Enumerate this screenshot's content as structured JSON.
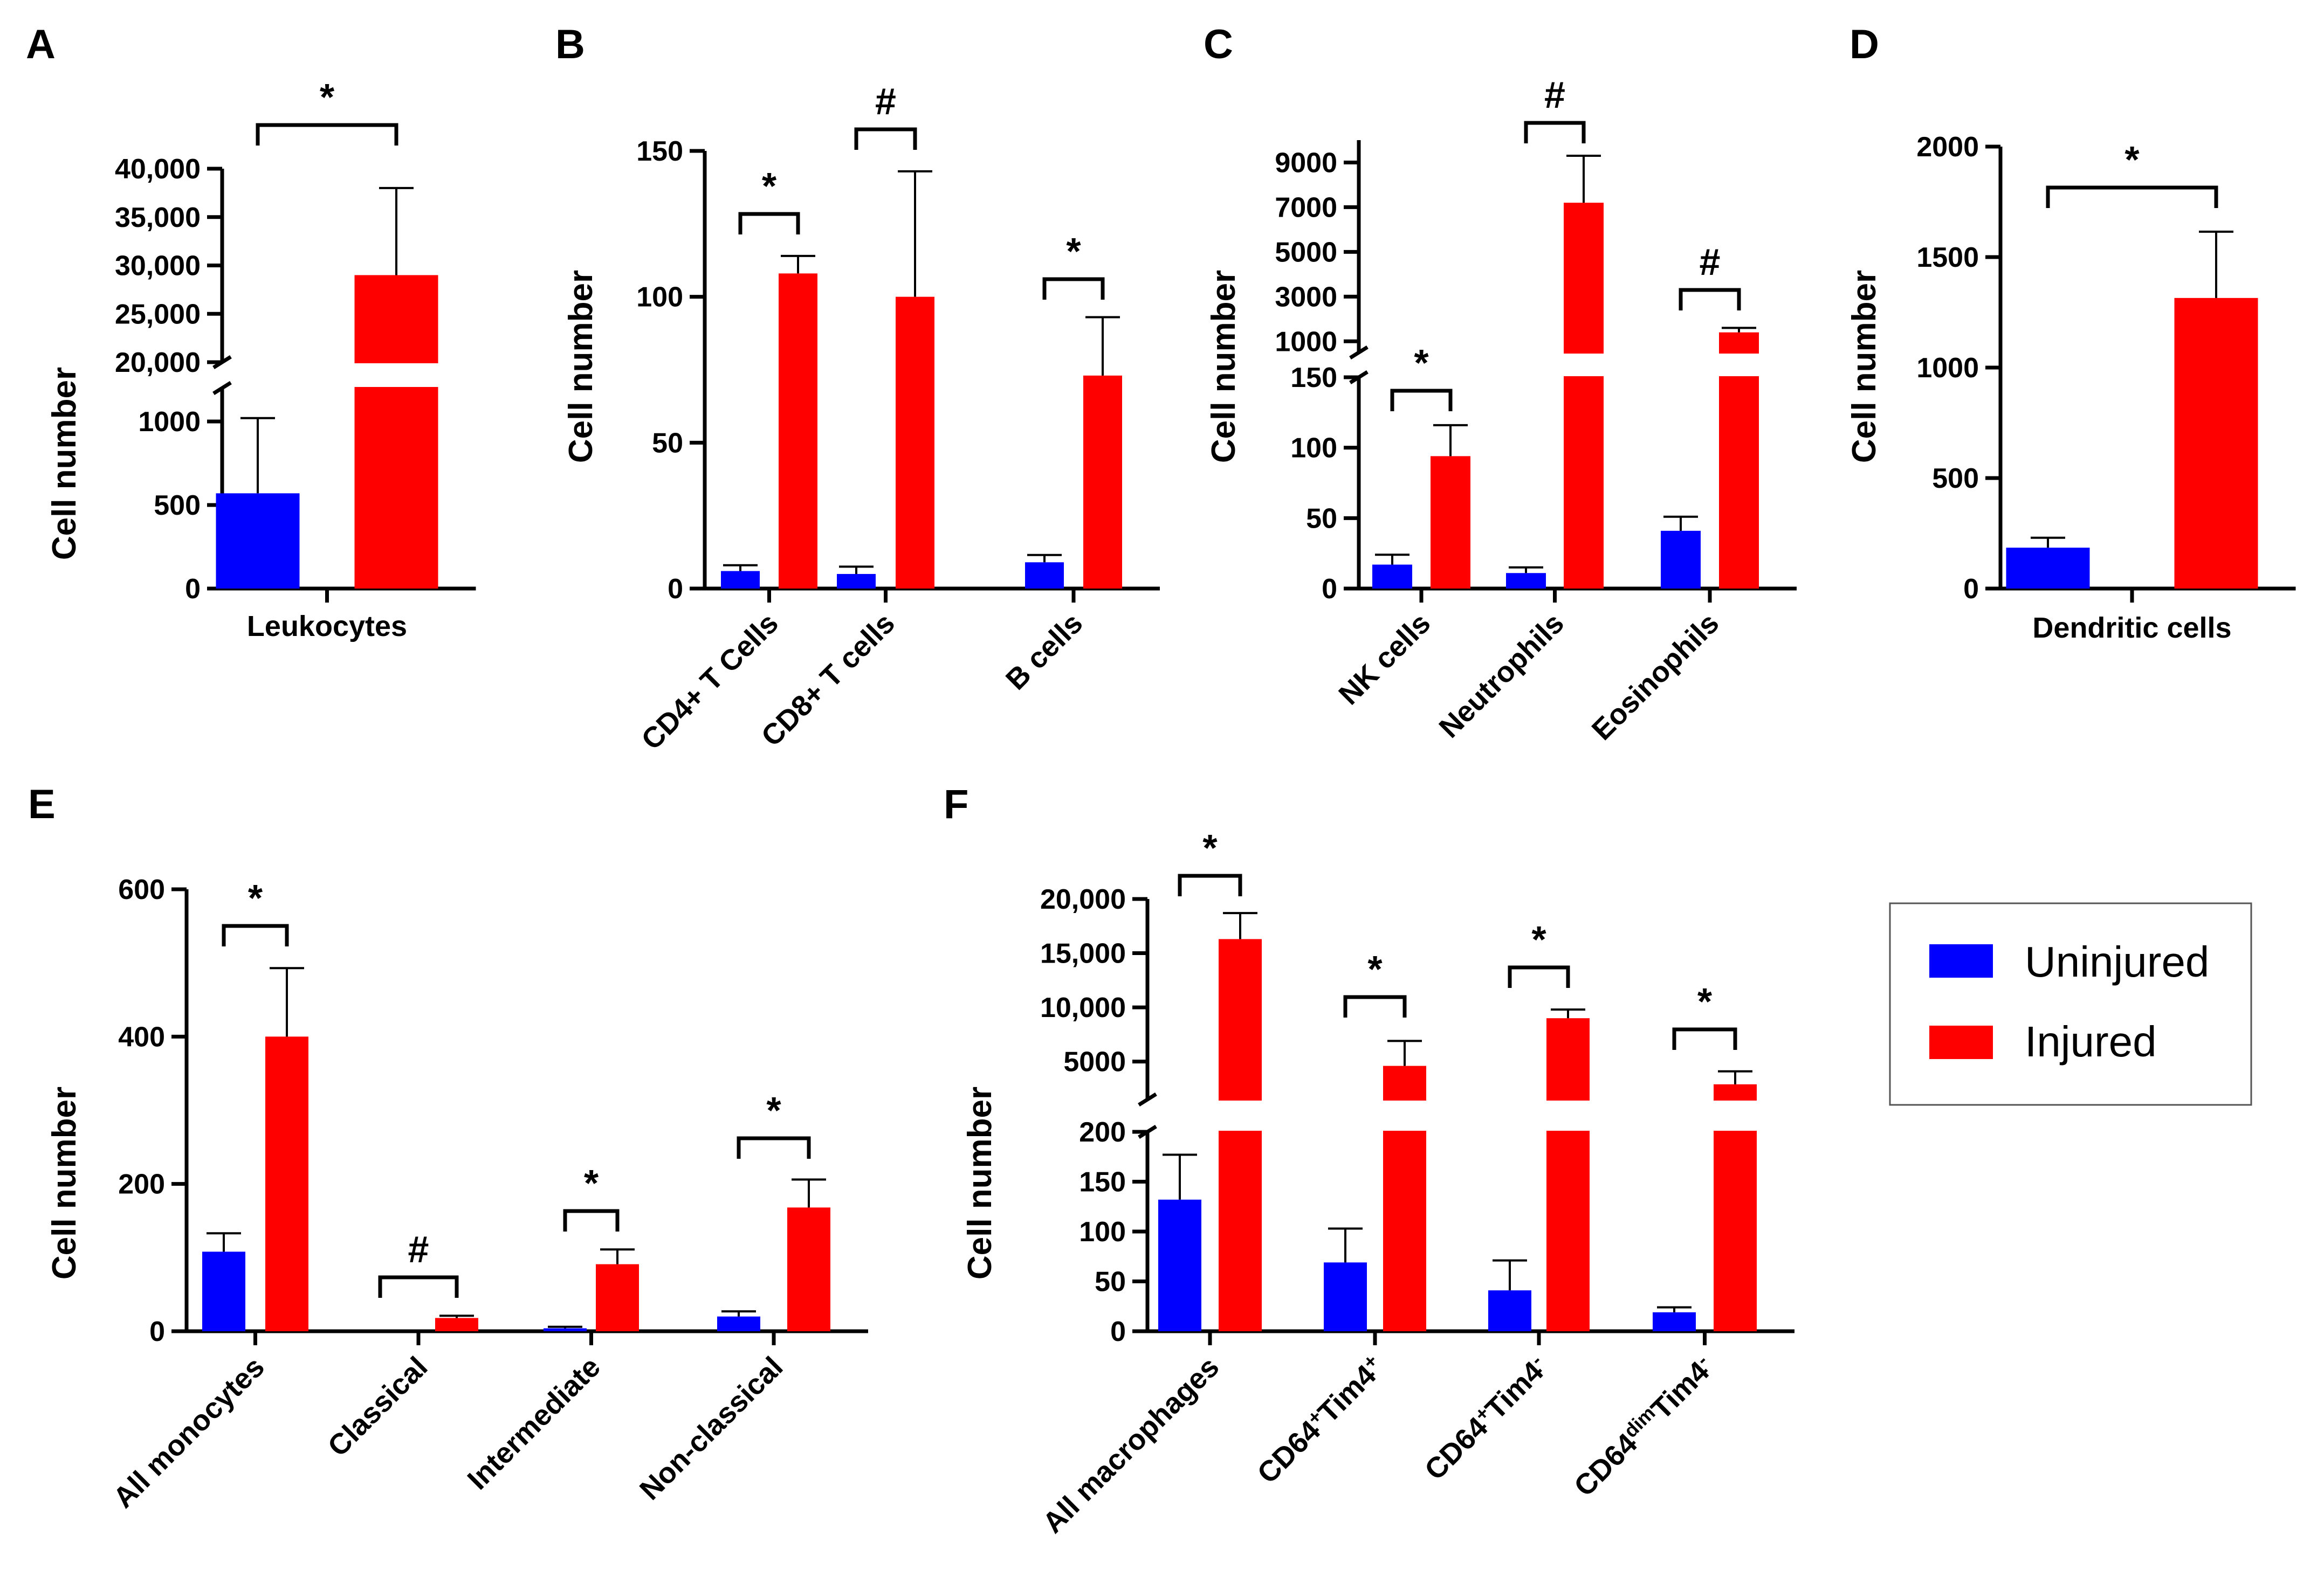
{
  "colors": {
    "uninjured": "#0000FF",
    "injured": "#FF0000",
    "star": "#000000"
  },
  "legend": {
    "entries": [
      {
        "name": "Uninjured",
        "color": "#0000FF"
      },
      {
        "name": "Injured",
        "color": "#FF0000"
      }
    ]
  },
  "chart_data": [
    {
      "panel": "A",
      "type": "bar",
      "ylabel": "Cell number",
      "x_label_style": "horizontal",
      "categories": [
        "Leukocytes"
      ],
      "series": [
        {
          "name": "Uninjured",
          "values": [
            570
          ],
          "errors": [
            450
          ]
        },
        {
          "name": "Injured",
          "values": [
            29000
          ],
          "errors": [
            9000
          ]
        }
      ],
      "y_axis": {
        "broken": true,
        "segments": [
          {
            "range": [
              0,
              1200
            ],
            "ticks": [
              0,
              500,
              1000
            ],
            "tick_labels": [
              "0",
              "500",
              "1000"
            ]
          },
          {
            "range": [
              20000,
              40000
            ],
            "ticks": [
              20000,
              25000,
              30000,
              35000,
              40000
            ],
            "tick_labels": [
              "20,000",
              "25,000",
              "30,000",
              "35,000",
              "40,000"
            ]
          }
        ]
      },
      "significance": [
        {
          "category": 0,
          "symbol": "*"
        }
      ]
    },
    {
      "panel": "B",
      "type": "bar",
      "ylabel": "Cell number",
      "x_label_style": "rotated",
      "categories": [
        "CD4+ T Cells",
        "CD8+ T cells",
        "B cells"
      ],
      "series": [
        {
          "name": "Uninjured",
          "values": [
            6,
            5,
            9
          ],
          "errors": [
            2,
            2.5,
            2.5
          ]
        },
        {
          "name": "Injured",
          "values": [
            108,
            100,
            73
          ],
          "errors": [
            6,
            43,
            20
          ]
        }
      ],
      "y_axis": {
        "broken": false,
        "segments": [
          {
            "range": [
              0,
              150
            ],
            "ticks": [
              0,
              50,
              100,
              150
            ],
            "tick_labels": [
              "0",
              "50",
              "100",
              "150"
            ]
          }
        ]
      },
      "significance": [
        {
          "category": 0,
          "symbol": "*"
        },
        {
          "category": 1,
          "symbol": "#"
        },
        {
          "category": 2,
          "symbol": "*"
        }
      ]
    },
    {
      "panel": "C",
      "type": "bar",
      "ylabel": "Cell number",
      "x_label_style": "rotated",
      "categories": [
        "NK cells",
        "Neutrophils",
        "Eosinophils"
      ],
      "series": [
        {
          "name": "Uninjured",
          "values": [
            17,
            11,
            41
          ],
          "errors": [
            7,
            4,
            10
          ]
        },
        {
          "name": "Injured",
          "values": [
            94,
            7200,
            1400
          ],
          "errors": [
            22,
            2100,
            200
          ]
        }
      ],
      "y_axis": {
        "broken": true,
        "segments": [
          {
            "range": [
              0,
              150
            ],
            "ticks": [
              0,
              50,
              100,
              150
            ],
            "tick_labels": [
              "0",
              "50",
              "100",
              "150"
            ]
          },
          {
            "range": [
              500,
              10000
            ],
            "ticks": [
              1000,
              3000,
              5000,
              7000,
              9000
            ],
            "tick_labels": [
              "1000",
              "3000",
              "5000",
              "7000",
              "9000"
            ]
          }
        ]
      },
      "significance": [
        {
          "category": 0,
          "symbol": "*"
        },
        {
          "category": 1,
          "symbol": "#"
        },
        {
          "category": 2,
          "symbol": "#"
        }
      ]
    },
    {
      "panel": "D",
      "type": "bar",
      "ylabel": "Cell number",
      "x_label_style": "horizontal",
      "categories": [
        "Dendritic cells"
      ],
      "series": [
        {
          "name": "Uninjured",
          "values": [
            185
          ],
          "errors": [
            45
          ]
        },
        {
          "name": "Injured",
          "values": [
            1315
          ],
          "errors": [
            300
          ]
        }
      ],
      "y_axis": {
        "broken": false,
        "segments": [
          {
            "range": [
              0,
              2000
            ],
            "ticks": [
              0,
              500,
              1000,
              1500,
              2000
            ],
            "tick_labels": [
              "0",
              "500",
              "1000",
              "1500",
              "2000"
            ]
          }
        ]
      },
      "significance": [
        {
          "category": 0,
          "symbol": "*"
        }
      ]
    },
    {
      "panel": "E",
      "type": "bar",
      "ylabel": "Cell number",
      "x_label_style": "rotated",
      "categories": [
        "All monocytes",
        "Classical",
        "Intermediate",
        "Non-classical"
      ],
      "series": [
        {
          "name": "Uninjured",
          "values": [
            108,
            0,
            4,
            20
          ],
          "errors": [
            25,
            0,
            2,
            7
          ]
        },
        {
          "name": "Injured",
          "values": [
            400,
            18,
            91,
            168
          ],
          "errors": [
            93,
            3,
            20,
            38
          ]
        }
      ],
      "y_axis": {
        "broken": false,
        "segments": [
          {
            "range": [
              0,
              600
            ],
            "ticks": [
              0,
              200,
              400,
              600
            ],
            "tick_labels": [
              "0",
              "200",
              "400",
              "600"
            ]
          }
        ]
      },
      "significance": [
        {
          "category": 0,
          "symbol": "*"
        },
        {
          "category": 1,
          "symbol": "#"
        },
        {
          "category": 2,
          "symbol": "*"
        },
        {
          "category": 3,
          "symbol": "*"
        }
      ]
    },
    {
      "panel": "F",
      "type": "bar",
      "ylabel": "Cell number",
      "x_label_style": "rotated",
      "categories": [
        "All macrophages",
        "CD64+Tim4+",
        "CD64+Tim4-",
        "CD64dimTim4-"
      ],
      "category_parts": [
        [
          {
            "t": "All macrophages",
            "s": "n"
          }
        ],
        [
          {
            "t": "CD64",
            "s": "n"
          },
          {
            "t": "+",
            "s": "sup"
          },
          {
            "t": "Tim4",
            "s": "n"
          },
          {
            "t": "+",
            "s": "sup"
          }
        ],
        [
          {
            "t": "CD64",
            "s": "n"
          },
          {
            "t": "+",
            "s": "sup"
          },
          {
            "t": "Tim4",
            "s": "n"
          },
          {
            "t": "-",
            "s": "sup"
          }
        ],
        [
          {
            "t": "CD64",
            "s": "n"
          },
          {
            "t": "dim",
            "s": "sup"
          },
          {
            "t": "Tim4",
            "s": "n"
          },
          {
            "t": "-",
            "s": "sup"
          }
        ]
      ],
      "series": [
        {
          "name": "Uninjured",
          "values": [
            132,
            69,
            41,
            19
          ],
          "errors": [
            45,
            34,
            30,
            5
          ]
        },
        {
          "name": "Injured",
          "values": [
            16300,
            4600,
            9000,
            2900
          ],
          "errors": [
            2400,
            2300,
            800,
            1200
          ]
        }
      ],
      "y_axis": {
        "broken": true,
        "segments": [
          {
            "range": [
              0,
              200
            ],
            "ticks": [
              0,
              50,
              100,
              150,
              200
            ],
            "tick_labels": [
              "0",
              "50",
              "100",
              "150",
              "200"
            ]
          },
          {
            "range": [
              1500,
              20000
            ],
            "ticks": [
              5000,
              10000,
              15000,
              20000
            ],
            "tick_labels": [
              "5000",
              "10,000",
              "15,000",
              "20,000"
            ]
          }
        ]
      },
      "significance": [
        {
          "category": 0,
          "symbol": "*"
        },
        {
          "category": 1,
          "symbol": "*"
        },
        {
          "category": 2,
          "symbol": "*"
        },
        {
          "category": 3,
          "symbol": "*"
        }
      ]
    }
  ]
}
